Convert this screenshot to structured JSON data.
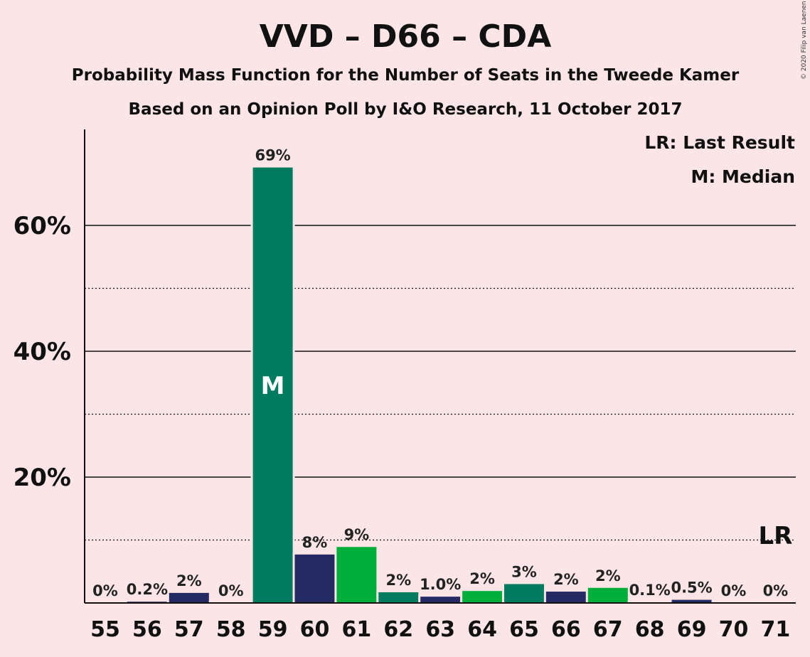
{
  "title": "VVD – D66 – CDA",
  "subtitle": "Probability Mass Function for the Number of Seats in the Tweede Kamer",
  "subtitle2": "Based on an Opinion Poll by I&O Research, 11 October 2017",
  "copyright": "© 2020 Filip van Laenen",
  "legend": {
    "lr": "LR: Last Result",
    "m": "M: Median"
  },
  "marks": {
    "median": "M",
    "last_result": "LR"
  },
  "colors": {
    "background": "#fbe5e6",
    "vvd": "#252a63",
    "d66": "#00ae3c",
    "cda": "#007b5f"
  },
  "chart_data": {
    "type": "bar",
    "categories": [
      "55",
      "56",
      "57",
      "58",
      "59",
      "60",
      "61",
      "62",
      "63",
      "64",
      "65",
      "66",
      "67",
      "68",
      "69",
      "70",
      "71"
    ],
    "values": [
      0,
      0.2,
      1.6,
      0,
      69.2,
      7.7,
      8.9,
      1.7,
      1.0,
      1.9,
      3.0,
      1.8,
      2.4,
      0.1,
      0.5,
      0,
      0
    ],
    "labels": [
      "0%",
      "0.2%",
      "2%",
      "0%",
      "69%",
      "8%",
      "9%",
      "2%",
      "1.0%",
      "2%",
      "3%",
      "2%",
      "2%",
      "0.1%",
      "0.5%",
      "0%",
      "0%"
    ],
    "bar_colors": [
      "#252a63",
      "#252a63",
      "#252a63",
      "#00ae3c",
      "#007b5f",
      "#252a63",
      "#00ae3c",
      "#007b5f",
      "#252a63",
      "#00ae3c",
      "#007b5f",
      "#252a63",
      "#00ae3c",
      "#007b5f",
      "#252a63",
      "#00ae3c",
      "#007b5f"
    ],
    "yticks": [
      {
        "value": 20,
        "label": "20%"
      },
      {
        "value": 40,
        "label": "40%"
      },
      {
        "value": 60,
        "label": "60%"
      }
    ],
    "minor_gridlines": [
      10,
      30,
      50
    ],
    "ylim": [
      0,
      75
    ],
    "median_category": "59",
    "last_result_category": "71",
    "xlabel": "",
    "ylabel": "",
    "grid": true,
    "legend_position": "top-right"
  }
}
